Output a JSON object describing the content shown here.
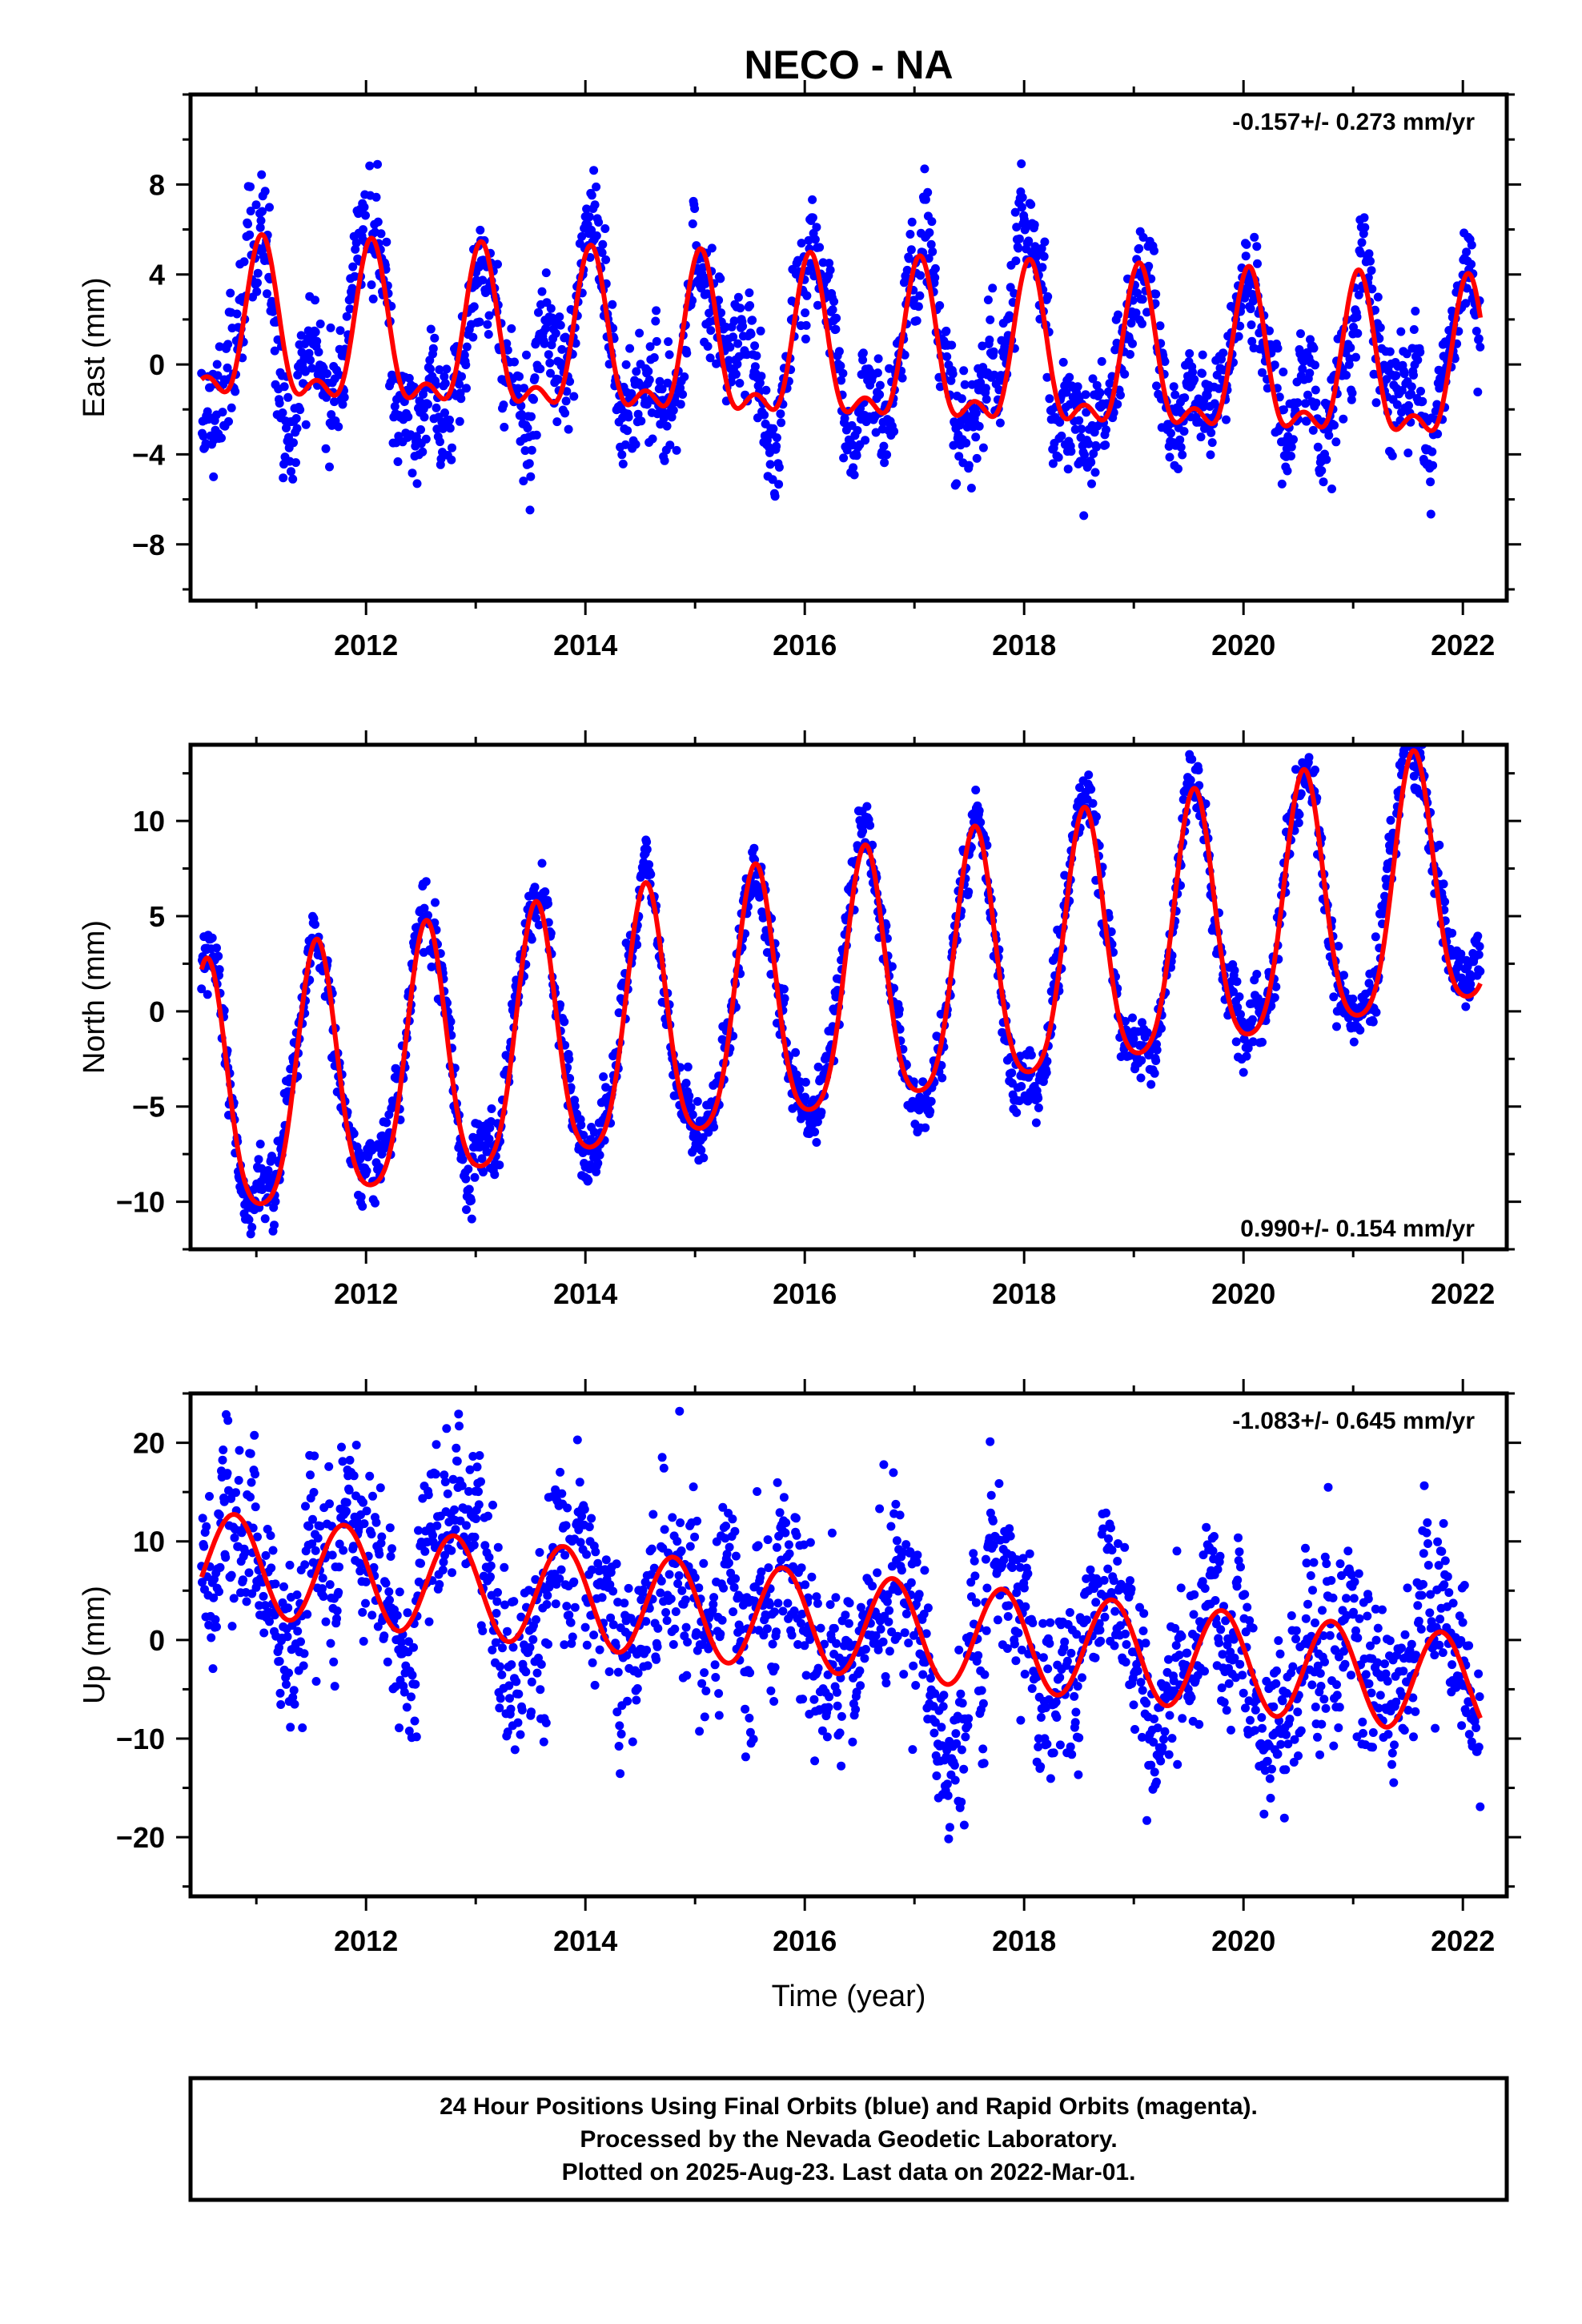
{
  "chart_data": {
    "type": "scatter",
    "title": "NECO - NA",
    "x_axis": {
      "label": "Time (year)",
      "range": [
        2010.4,
        2022.4
      ],
      "major_ticks": [
        2012,
        2014,
        2016,
        2018,
        2020,
        2022
      ],
      "tick_labels": [
        "2012",
        "2014",
        "2016",
        "2018",
        "2020",
        "2022"
      ]
    },
    "panels": [
      {
        "name": "East",
        "ylabel": "East (mm)",
        "ylim": [
          -10.5,
          12
        ],
        "yticks": [
          -8,
          -4,
          0,
          4,
          8
        ],
        "ytick_labels": [
          "−8",
          "−4",
          "0",
          "4",
          "8"
        ],
        "rate": "-0.157+/- 0.273 mm/yr",
        "rate_position": "top-right",
        "model": {
          "trend_mm_per_yr": -0.157,
          "offset": 0.3,
          "annual_amp": 3.2,
          "annual_phase_peak": 0.05,
          "semiannual_amp": 1.5,
          "semiannual_phase_peak": 0.05
        },
        "scatter": {
          "noise_sd": 1.3,
          "seed": 11
        },
        "data_start": 2010.5,
        "data_end": 2022.16
      },
      {
        "name": "North",
        "ylabel": "North (mm)",
        "ylim": [
          -12.5,
          14
        ],
        "yticks": [
          -10,
          -5,
          0,
          5,
          10
        ],
        "ytick_labels": [
          "−10",
          "−5",
          "0",
          "5",
          "10"
        ],
        "rate": "0.990+/- 0.154 mm/yr",
        "rate_position": "bottom-right",
        "model": {
          "trend_mm_per_yr": 0.99,
          "offset": 0.3,
          "annual_amp": 6.7,
          "annual_phase_peak": 0.55,
          "semiannual_amp": 1.2,
          "semiannual_phase_peak": 0.55
        },
        "scatter": {
          "noise_sd": 0.9,
          "seed": 23
        },
        "data_start": 2010.5,
        "data_end": 2022.16
      },
      {
        "name": "Up",
        "ylabel": "Up (mm)",
        "ylim": [
          -26,
          25
        ],
        "yticks": [
          -20,
          -10,
          0,
          10,
          20
        ],
        "ytick_labels": [
          "−20",
          "−10",
          "0",
          "10",
          "20"
        ],
        "rate": "-1.083+/- 0.645 mm/yr",
        "rate_position": "top-right",
        "model": {
          "trend_mm_per_yr": -1.083,
          "offset": 2.0,
          "annual_amp": 5.1,
          "annual_phase_peak": 0.8,
          "semiannual_amp": 0.0,
          "semiannual_phase_peak": 0.0
        },
        "scatter": {
          "noise_sd": 4.6,
          "seed": 37
        },
        "data_start": 2010.5,
        "data_end": 2022.16
      }
    ],
    "series": [
      {
        "name": "Final Orbits",
        "color": "#0000ff",
        "marker": "dot"
      },
      {
        "name": "Model",
        "color": "#ff0000",
        "marker": "line"
      }
    ]
  },
  "footer": {
    "line1": "24 Hour Positions Using Final Orbits (blue) and Rapid Orbits (magenta).",
    "line2": "Processed by the Nevada Geodetic Laboratory.",
    "line3": "Plotted on 2025-Aug-23. Last data on 2022-Mar-01."
  },
  "colors": {
    "points": "#0000ff",
    "model": "#ff0000",
    "frame": "#000000"
  }
}
